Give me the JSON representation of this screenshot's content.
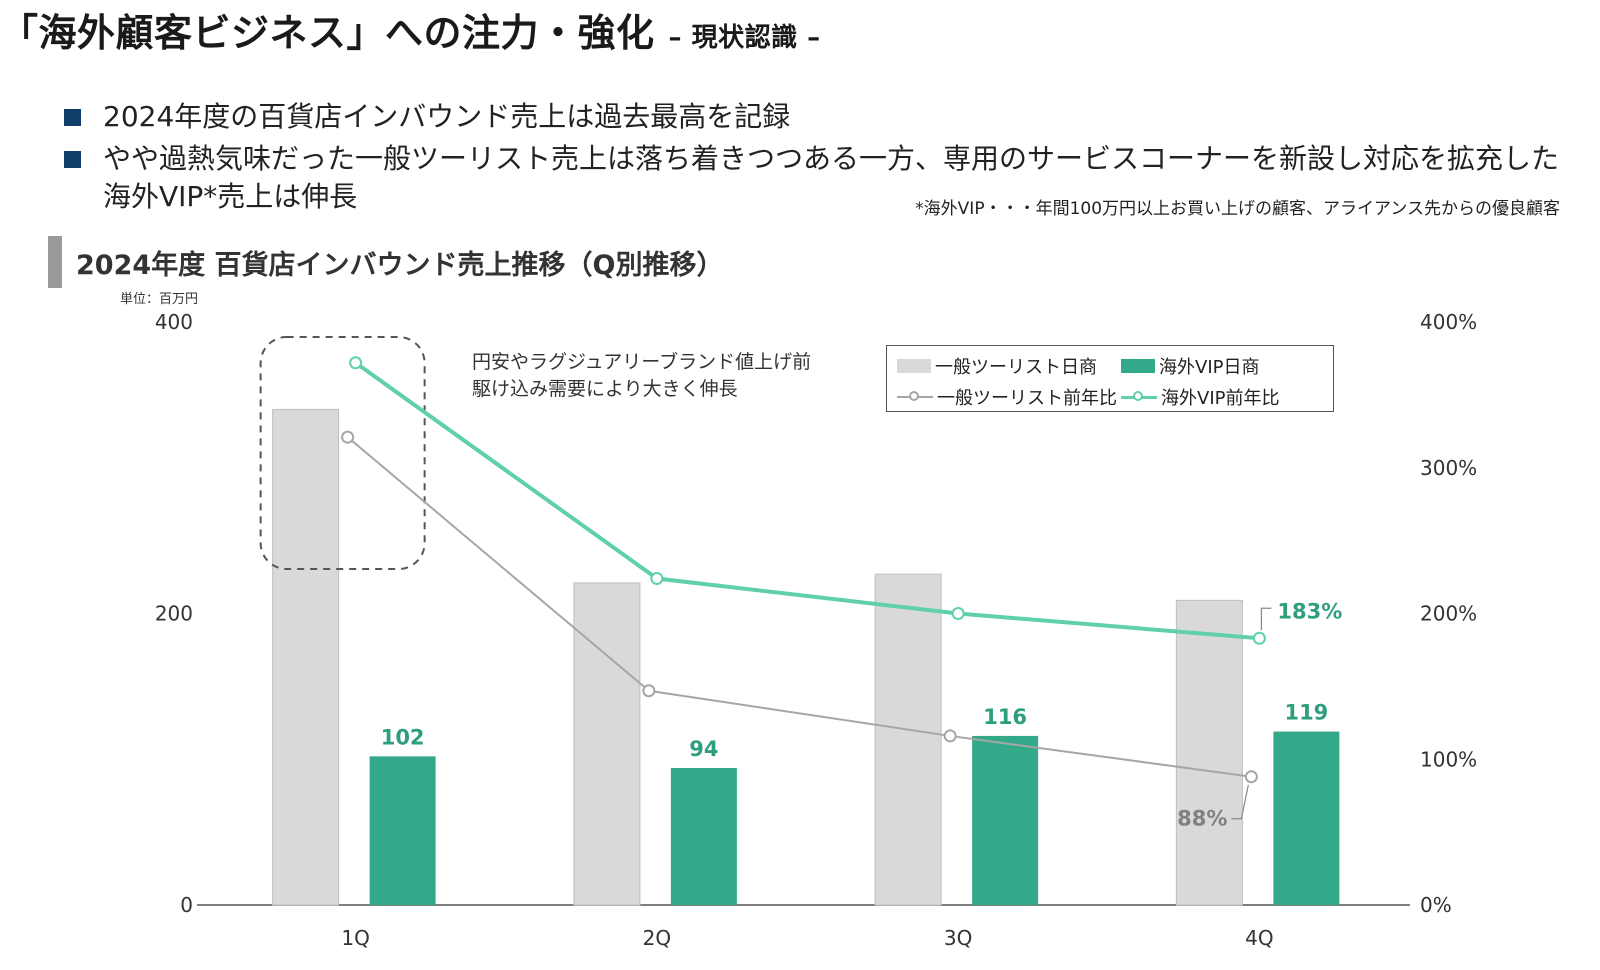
{
  "header": {
    "title": "「海外顧客ビジネス」への注力・強化",
    "subtitle": "– 現状認識 –"
  },
  "bullets": [
    "2024年度の百貨店インバウンド売上は過去最高を記録",
    "やや過熱気味だった一般ツーリスト売上は落ち着きつつある一方、専用のサービスコーナーを新設し対応を拡充した",
    "海外VIP*売上は伸長"
  ],
  "footnote": "*海外VIP・・・年間100万円以上お買い上げの顧客、アライアンス先からの優良顧客",
  "section": {
    "title": "2024年度 百貨店インバウンド売上推移（Q別推移）"
  },
  "unit_label": "単位：百万円",
  "annotation": [
    "円安やラグジュアリーブランド値上げ前",
    "駆け込み需要により大きく伸長"
  ],
  "colors": {
    "tourist_bar": "#d9d9d9",
    "vip_bar": "#33a98a",
    "tourist_line": "#a6a6a6",
    "vip_line": "#5fcfae",
    "bullet": "#123e6b",
    "vip_label": "#2f9e7e",
    "tourist_label": "#808080"
  },
  "chart_data": {
    "type": "bar",
    "categories": [
      "1Q",
      "2Q",
      "3Q",
      "4Q"
    ],
    "series": [
      {
        "name": "一般ツーリスト日商",
        "type": "bar",
        "axis": "left",
        "values": [
          340,
          221,
          227,
          209
        ]
      },
      {
        "name": "海外VIP日商",
        "type": "bar",
        "axis": "left",
        "values": [
          102,
          94,
          116,
          119
        ]
      },
      {
        "name": "一般ツーリスト前年比",
        "type": "line",
        "axis": "right",
        "values": [
          3.21,
          1.47,
          1.16,
          0.88
        ]
      },
      {
        "name": "海外VIP前年比",
        "type": "line",
        "axis": "right",
        "values": [
          3.72,
          2.24,
          2.0,
          1.83
        ]
      }
    ],
    "bar_labels": [
      "102",
      "94",
      "116",
      "119"
    ],
    "line_labels": {
      "vip_last": "183%",
      "tourist_last": "88%"
    },
    "y_left": {
      "ticks": [
        "0",
        "200",
        "400"
      ],
      "ylim": [
        0,
        400
      ]
    },
    "y_right": {
      "ticks": [
        "0%",
        "100%",
        "200%",
        "300%",
        "400%"
      ],
      "ylim": [
        0,
        4
      ]
    },
    "legend_position": "top-right",
    "grid": false
  }
}
